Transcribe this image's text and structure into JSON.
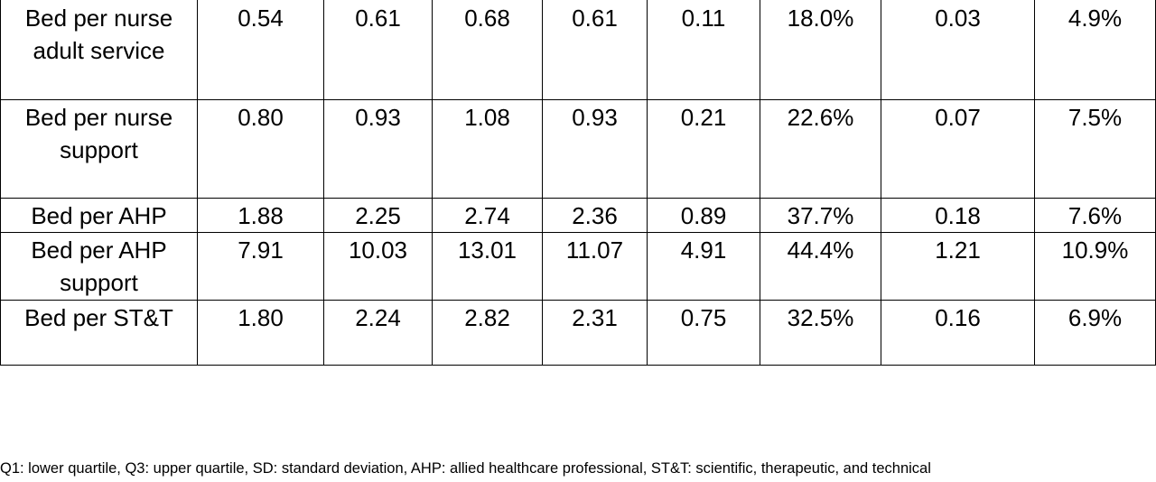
{
  "table": {
    "rows": [
      [
        "Bed per nurse adult service",
        "0.54",
        "0.61",
        "0.68",
        "0.61",
        "0.11",
        "18.0%",
        "0.03",
        "4.9%"
      ],
      [
        "Bed per nurse support",
        "0.80",
        "0.93",
        "1.08",
        "0.93",
        "0.21",
        "22.6%",
        "0.07",
        "7.5%"
      ],
      [
        "Bed per AHP",
        "1.88",
        "2.25",
        "2.74",
        "2.36",
        "0.89",
        "37.7%",
        "0.18",
        "7.6%"
      ],
      [
        "Bed per AHP support",
        "7.91",
        "10.03",
        "13.01",
        "11.07",
        "4.91",
        "44.4%",
        "1.21",
        "10.9%"
      ],
      [
        "Bed per ST&T",
        "1.80",
        "2.24",
        "2.82",
        "2.31",
        "0.75",
        "32.5%",
        "0.16",
        "6.9%"
      ]
    ]
  },
  "footnote": "Q1: lower quartile, Q3: upper quartile, SD: standard deviation, AHP: allied healthcare professional, ST&T: scientific, therapeutic, and technical"
}
